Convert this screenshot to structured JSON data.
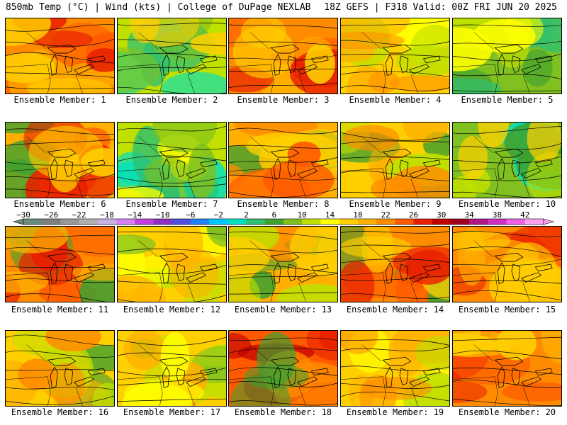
{
  "header": {
    "title": "850mb Temp (°C) | Wind (kts) | College of DuPage NEXLAB",
    "run_info": "18Z GEFS | F318 Valid: 00Z FRI JUN 20 2025"
  },
  "colorbar": {
    "tick_labels": [
      "−30",
      "−26",
      "−22",
      "−18",
      "−14",
      "−10",
      "−6",
      "−2",
      "2",
      "6",
      "10",
      "14",
      "18",
      "22",
      "26",
      "30",
      "34",
      "38",
      "42"
    ],
    "colors": [
      "#6a8a7a",
      "#7f7f7f",
      "#999999",
      "#b0b0b0",
      "#c9b0e0",
      "#d880f0",
      "#c040e0",
      "#9030c0",
      "#5050e0",
      "#2080ff",
      "#00c8ff",
      "#00e0c0",
      "#30c070",
      "#40a030",
      "#80c020",
      "#c0e000",
      "#ffff00",
      "#ffd000",
      "#ffb000",
      "#ff8c00",
      "#ff5a00",
      "#e82000",
      "#c00000",
      "#a00020",
      "#b01880",
      "#d030c0",
      "#f060e0",
      "#ffa0f0"
    ]
  },
  "panels": [
    {
      "label": "Ensemble Member: 1",
      "base": "#ff8c00",
      "accents": [
        "#ff5a00",
        "#ffb000",
        "#e82000",
        "#ffd000"
      ]
    },
    {
      "label": "Ensemble Member: 2",
      "base": "#c0e000",
      "accents": [
        "#00e0c0",
        "#30c070",
        "#80c020",
        "#ffd000"
      ]
    },
    {
      "label": "Ensemble Member: 3",
      "base": "#ff8c00",
      "accents": [
        "#ff5a00",
        "#ffb000",
        "#e82000",
        "#ffd000"
      ]
    },
    {
      "label": "Ensemble Member: 4",
      "base": "#ffd000",
      "accents": [
        "#ffff00",
        "#c0e000",
        "#ffb000",
        "#ff8c00"
      ]
    },
    {
      "label": "Ensemble Member: 5",
      "base": "#80c020",
      "accents": [
        "#40a030",
        "#30c070",
        "#c0e000",
        "#ffff00"
      ]
    },
    {
      "label": "Ensemble Member: 6",
      "base": "#ffb000",
      "accents": [
        "#ff5a00",
        "#40a030",
        "#e82000",
        "#ffd000"
      ]
    },
    {
      "label": "Ensemble Member: 7",
      "base": "#c0e000",
      "accents": [
        "#00e0c0",
        "#30c070",
        "#ffff00",
        "#80c020"
      ]
    },
    {
      "label": "Ensemble Member: 8",
      "base": "#ffb000",
      "accents": [
        "#40a030",
        "#ff8c00",
        "#ffd000",
        "#ff5a00"
      ]
    },
    {
      "label": "Ensemble Member: 9",
      "base": "#ffd000",
      "accents": [
        "#40a030",
        "#ffb000",
        "#c0e000",
        "#ff8c00"
      ]
    },
    {
      "label": "Ensemble Member: 10",
      "base": "#80c020",
      "accents": [
        "#00e0c0",
        "#40a030",
        "#c0e000",
        "#ffd000"
      ]
    },
    {
      "label": "Ensemble Member: 11",
      "base": "#ff8c00",
      "accents": [
        "#ff5a00",
        "#40a030",
        "#e82000",
        "#ffb000"
      ]
    },
    {
      "label": "Ensemble Member: 12",
      "base": "#ffd000",
      "accents": [
        "#c0e000",
        "#ffff00",
        "#ffb000",
        "#80c020"
      ]
    },
    {
      "label": "Ensemble Member: 13",
      "base": "#ffb000",
      "accents": [
        "#40a030",
        "#ff8c00",
        "#c0e000",
        "#ffd000"
      ]
    },
    {
      "label": "Ensemble Member: 14",
      "base": "#ff8c00",
      "accents": [
        "#40a030",
        "#ff5a00",
        "#ffd000",
        "#e82000"
      ]
    },
    {
      "label": "Ensemble Member: 15",
      "base": "#ff8c00",
      "accents": [
        "#ff5a00",
        "#e82000",
        "#ffb000",
        "#ffd000"
      ]
    },
    {
      "label": "Ensemble Member: 16",
      "base": "#ffd000",
      "accents": [
        "#40a030",
        "#ffb000",
        "#c0e000",
        "#ff8c00"
      ]
    },
    {
      "label": "Ensemble Member: 17",
      "base": "#ffd000",
      "accents": [
        "#c0e000",
        "#80c020",
        "#ffb000",
        "#ffff00"
      ]
    },
    {
      "label": "Ensemble Member: 18",
      "base": "#ff5a00",
      "accents": [
        "#e82000",
        "#c00000",
        "#ff8c00",
        "#40a030"
      ]
    },
    {
      "label": "Ensemble Member: 19",
      "base": "#ffd000",
      "accents": [
        "#ffff00",
        "#ffb000",
        "#c0e000",
        "#ff8c00"
      ]
    },
    {
      "label": "Ensemble Member: 20",
      "base": "#ff8c00",
      "accents": [
        "#e82000",
        "#ff5a00",
        "#ffb000",
        "#ffd000"
      ]
    }
  ]
}
